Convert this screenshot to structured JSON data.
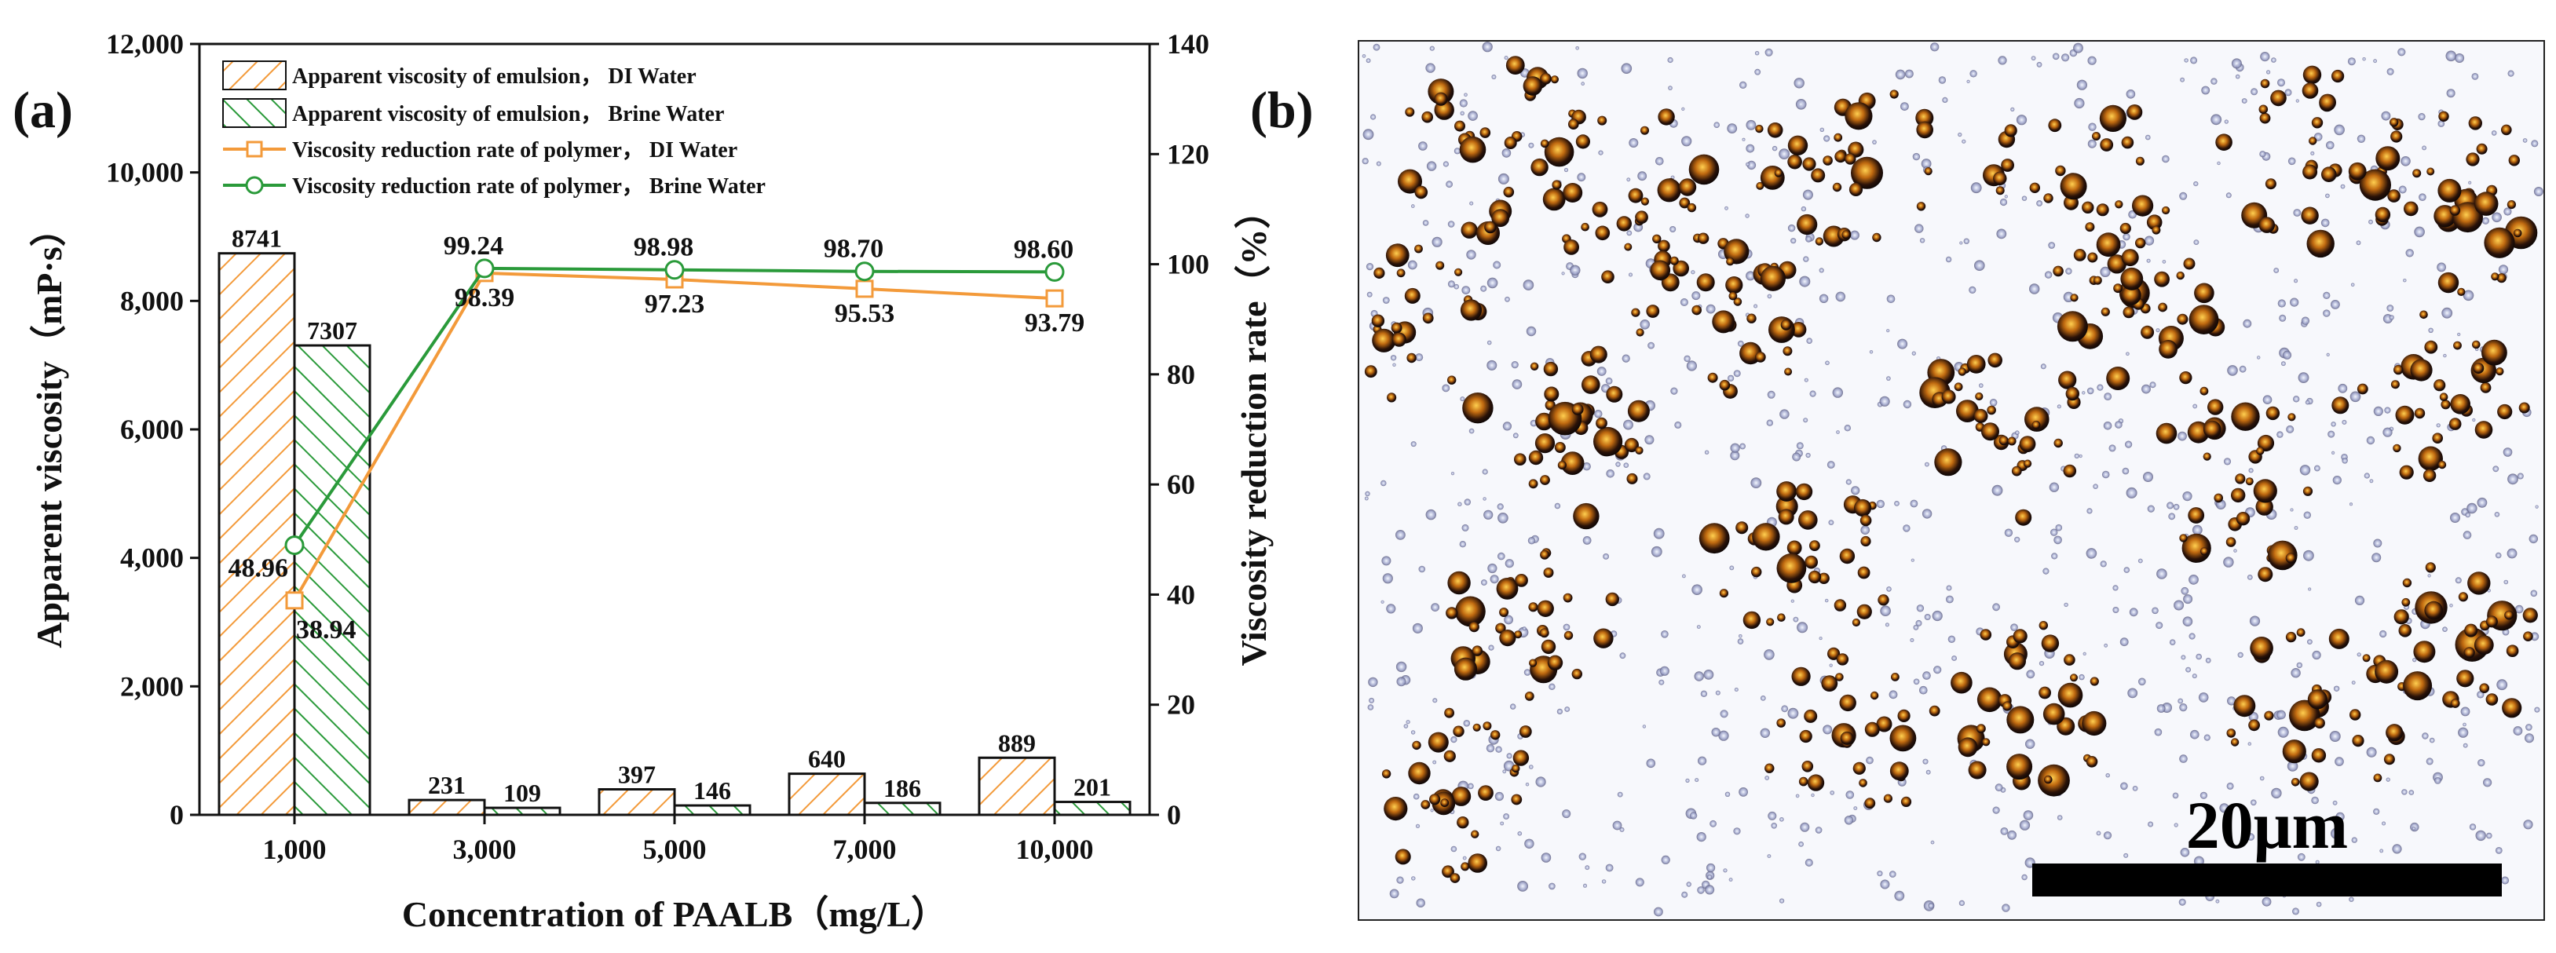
{
  "panel_a_label": "(a)",
  "panel_b_label": "(b)",
  "colors": {
    "di": "#f39a3a",
    "brine": "#2a9a3a",
    "axis": "#111111"
  },
  "chart_data": {
    "type": "bar",
    "title": "",
    "xlabel": "Concentration of PAALB（mg/L）",
    "ylabel": "Apparent viscosity（mP·s）",
    "y2label": "Viscosity reduction rate（%）",
    "categories": [
      "1,000",
      "3,000",
      "5,000",
      "7,000",
      "10,000"
    ],
    "ylim": [
      0,
      12000
    ],
    "yticks": [
      "0",
      "2,000",
      "4,000",
      "6,000",
      "8,000",
      "10,000",
      "12,000"
    ],
    "y2lim": [
      0,
      140
    ],
    "y2ticks": [
      "0",
      "20",
      "40",
      "60",
      "80",
      "100",
      "120",
      "140"
    ],
    "series": [
      {
        "name": "Apparent viscosity of emulsion， DI Water",
        "kind": "bar",
        "axis": "left",
        "values": [
          8741,
          231,
          397,
          640,
          889
        ],
        "labels": [
          "8741",
          "231",
          "397",
          "640",
          "889"
        ]
      },
      {
        "name": "Apparent viscosity of emulsion， Brine Water",
        "kind": "bar",
        "axis": "left",
        "values": [
          7307,
          109,
          146,
          186,
          201
        ],
        "labels": [
          "7307",
          "109",
          "146",
          "186",
          "201"
        ]
      },
      {
        "name": "Viscosity reduction rate of polymer， DI Water",
        "kind": "line",
        "axis": "right",
        "values": [
          38.94,
          98.39,
          97.23,
          95.53,
          93.79
        ],
        "labels": [
          "38.94",
          "98.39",
          "97.23",
          "95.53",
          "93.79"
        ]
      },
      {
        "name": "Viscosity reduction rate of polymer， Brine Water",
        "kind": "line",
        "axis": "right",
        "values": [
          48.96,
          99.24,
          98.98,
          98.7,
          98.6
        ],
        "labels": [
          "48.96",
          "99.24",
          "98.98",
          "98.70",
          "98.60"
        ]
      }
    ],
    "legend": "top-left"
  },
  "micrograph": {
    "scale_bar_text": "20μm"
  }
}
